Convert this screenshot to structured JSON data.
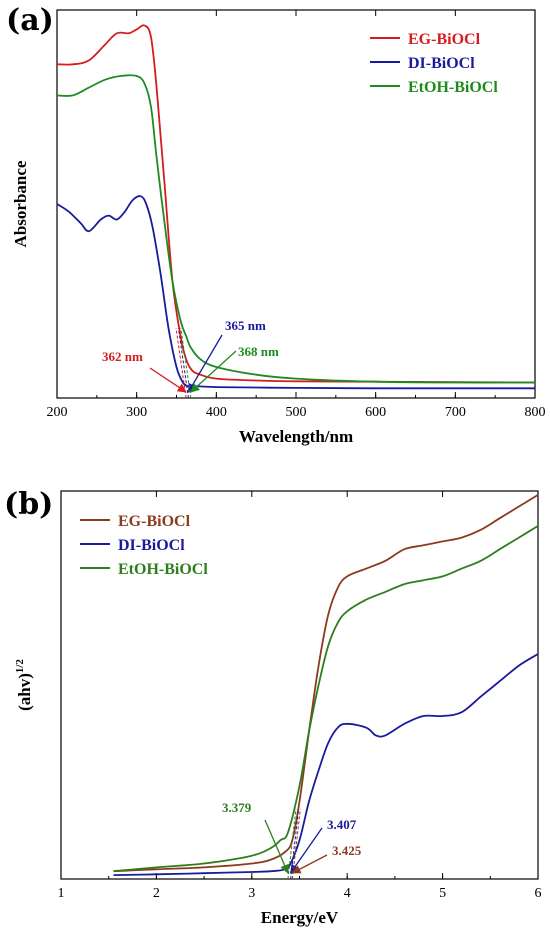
{
  "colors": {
    "a_eg": "#d41d1d",
    "a_di": "#1a1a9c",
    "a_etoh": "#1f8a1f",
    "b_eg": "#8b3a1e",
    "b_di": "#1a1a9c",
    "b_etoh": "#2e7d1e"
  },
  "chart_data": [
    {
      "panel": "(a)",
      "type": "line",
      "xlabel": "Wavelength/nm",
      "ylabel": "Absorbance",
      "xlim": [
        200,
        800
      ],
      "ylim": [
        0,
        1.0
      ],
      "xticks": [
        "200",
        "300",
        "400",
        "500",
        "600",
        "700",
        "800"
      ],
      "legend_position": "top-right",
      "series": [
        {
          "name": "EG-BiOCl",
          "x": [
            200,
            220,
            240,
            260,
            275,
            290,
            300,
            310,
            318,
            325,
            335,
            345,
            355,
            362,
            370,
            380,
            400,
            450,
            500,
            600,
            700,
            800
          ],
          "y": [
            0.86,
            0.86,
            0.87,
            0.91,
            0.94,
            0.94,
            0.95,
            0.96,
            0.93,
            0.8,
            0.55,
            0.3,
            0.16,
            0.1,
            0.07,
            0.06,
            0.05,
            0.045,
            0.043,
            0.042,
            0.041,
            0.04
          ]
        },
        {
          "name": "DI-BiOCl",
          "x": [
            200,
            215,
            230,
            240,
            255,
            265,
            275,
            285,
            295,
            305,
            312,
            320,
            330,
            340,
            350,
            358,
            365,
            372,
            380,
            400,
            450,
            500,
            600,
            700,
            800
          ],
          "y": [
            0.5,
            0.48,
            0.45,
            0.43,
            0.46,
            0.47,
            0.46,
            0.48,
            0.51,
            0.52,
            0.5,
            0.44,
            0.32,
            0.18,
            0.08,
            0.04,
            0.03,
            0.03,
            0.03,
            0.028,
            0.027,
            0.026,
            0.025,
            0.025,
            0.025
          ]
        },
        {
          "name": "EtOH-BiOCl",
          "x": [
            200,
            220,
            240,
            260,
            280,
            300,
            310,
            318,
            325,
            335,
            345,
            355,
            362,
            368,
            380,
            400,
            450,
            500,
            600,
            700,
            800
          ],
          "y": [
            0.78,
            0.78,
            0.8,
            0.82,
            0.83,
            0.83,
            0.81,
            0.75,
            0.62,
            0.45,
            0.3,
            0.2,
            0.16,
            0.13,
            0.1,
            0.08,
            0.06,
            0.05,
            0.042,
            0.04,
            0.04
          ]
        }
      ],
      "annotations": [
        {
          "text": "362 nm",
          "series": "EG-BiOCl",
          "value": 362
        },
        {
          "text": "365 nm",
          "series": "DI-BiOCl",
          "value": 365
        },
        {
          "text": "368 nm",
          "series": "EtOH-BiOCl",
          "value": 368
        }
      ]
    },
    {
      "panel": "(b)",
      "type": "line",
      "xlabel": "Energy/eV",
      "ylabel": "(ahv)",
      "ylabel_sup": "1/2",
      "xlim": [
        1,
        6
      ],
      "ylim": [
        0,
        1.0
      ],
      "xticks": [
        "1",
        "2",
        "3",
        "4",
        "5",
        "6"
      ],
      "legend_position": "top-left",
      "series": [
        {
          "name": "EG-BiOCl",
          "x": [
            1.55,
            2.0,
            2.5,
            3.0,
            3.2,
            3.35,
            3.425,
            3.5,
            3.6,
            3.7,
            3.8,
            3.9,
            4.0,
            4.2,
            4.4,
            4.6,
            4.8,
            5.0,
            5.2,
            5.4,
            5.6,
            5.8,
            6.0
          ],
          "y": [
            0.02,
            0.025,
            0.03,
            0.04,
            0.05,
            0.07,
            0.1,
            0.2,
            0.38,
            0.55,
            0.68,
            0.75,
            0.78,
            0.8,
            0.82,
            0.85,
            0.86,
            0.87,
            0.88,
            0.9,
            0.93,
            0.96,
            0.99
          ]
        },
        {
          "name": "DI-BiOCl",
          "x": [
            1.55,
            2.0,
            2.5,
            3.0,
            3.2,
            3.35,
            3.407,
            3.5,
            3.6,
            3.7,
            3.8,
            3.9,
            4.0,
            4.2,
            4.3,
            4.4,
            4.6,
            4.8,
            5.0,
            5.2,
            5.4,
            5.6,
            5.8,
            6.0
          ],
          "y": [
            0.01,
            0.012,
            0.015,
            0.018,
            0.02,
            0.025,
            0.04,
            0.1,
            0.2,
            0.28,
            0.35,
            0.39,
            0.4,
            0.39,
            0.37,
            0.37,
            0.4,
            0.42,
            0.42,
            0.43,
            0.47,
            0.51,
            0.55,
            0.58
          ]
        },
        {
          "name": "EtOH-BiOCl",
          "x": [
            1.55,
            2.0,
            2.5,
            3.0,
            3.2,
            3.3,
            3.379,
            3.5,
            3.6,
            3.7,
            3.8,
            3.9,
            4.0,
            4.2,
            4.4,
            4.6,
            4.8,
            5.0,
            5.2,
            5.4,
            5.6,
            5.8,
            6.0
          ],
          "y": [
            0.02,
            0.03,
            0.04,
            0.06,
            0.08,
            0.1,
            0.12,
            0.24,
            0.38,
            0.5,
            0.6,
            0.66,
            0.69,
            0.72,
            0.74,
            0.76,
            0.77,
            0.78,
            0.8,
            0.82,
            0.85,
            0.88,
            0.91
          ]
        }
      ],
      "annotations": [
        {
          "text": "3.379",
          "series": "EtOH-BiOCl",
          "value": 3.379
        },
        {
          "text": "3.407",
          "series": "DI-BiOCl",
          "value": 3.407
        },
        {
          "text": "3.425",
          "series": "EG-BiOCl",
          "value": 3.425
        }
      ]
    }
  ]
}
